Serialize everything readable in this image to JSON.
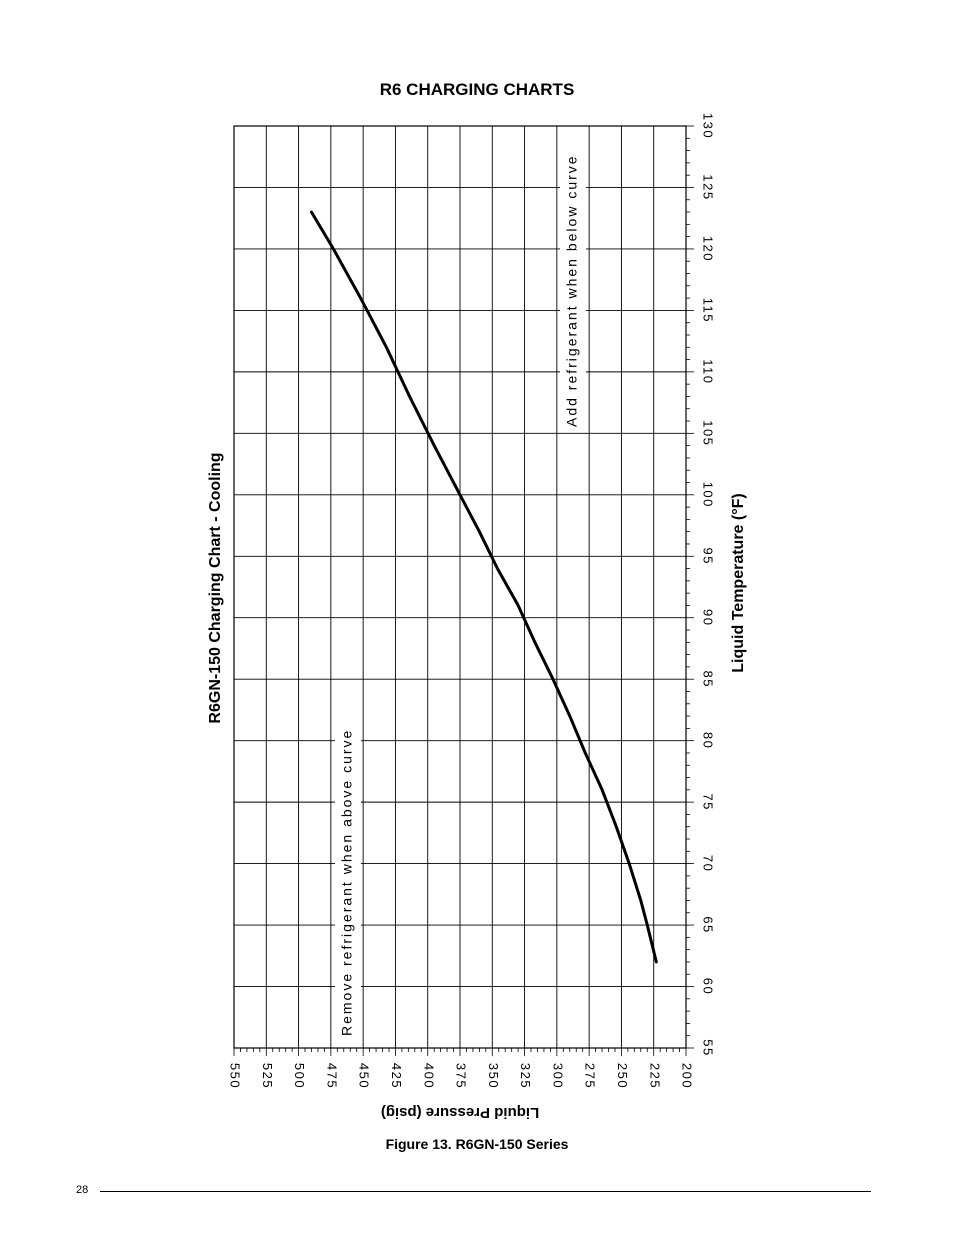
{
  "page": {
    "heading": "R6 CHARGING CHARTS",
    "caption": "Figure 13. R6GN-150 Series",
    "page_number": "28"
  },
  "chart_data": {
    "type": "line",
    "title": "R6GN-150 Charging Chart - Cooling",
    "xlabel": "Liquid Temperature (°F)",
    "ylabel": "Liquid Pressure (psig)",
    "orientation": "rotated-90-ccw",
    "xlim": [
      55,
      130
    ],
    "ylim": [
      200,
      550
    ],
    "x_ticks": [
      55,
      60,
      65,
      70,
      75,
      80,
      85,
      90,
      95,
      100,
      105,
      110,
      115,
      120,
      125,
      130
    ],
    "y_ticks": [
      550,
      525,
      500,
      475,
      450,
      425,
      400,
      375,
      350,
      325,
      300,
      275,
      250,
      225,
      200
    ],
    "grid": true,
    "annotations": [
      "Remove refrigerant when above curve",
      "Add refrigerant when below curve"
    ],
    "series": [
      {
        "x": [
          62,
          65,
          67,
          70,
          73,
          76,
          79,
          82,
          85,
          88,
          91,
          94,
          97,
          100,
          104,
          108,
          112,
          116,
          120,
          123
        ],
        "y": [
          223,
          230,
          235,
          244,
          254,
          265,
          278,
          290,
          303,
          317,
          330,
          346,
          360,
          375,
          395,
          414,
          432,
          452,
          473,
          490
        ]
      }
    ]
  }
}
